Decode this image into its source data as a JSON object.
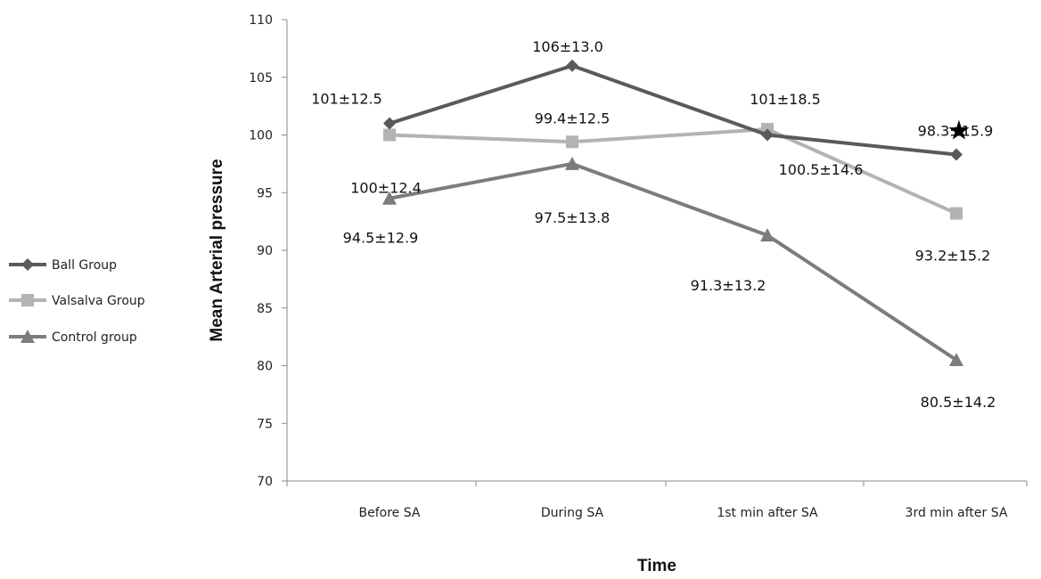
{
  "chart_data": {
    "type": "line",
    "title": "",
    "xlabel": "Time",
    "ylabel": "Mean Arterial  pressure",
    "ylim": [
      70,
      110
    ],
    "yticks": [
      70,
      75,
      80,
      85,
      90,
      95,
      100,
      105,
      110
    ],
    "categories": [
      "Before SA",
      "During SA",
      "1st min after SA",
      "3rd min after SA"
    ],
    "grid": false,
    "legend_position": "left",
    "series": [
      {
        "name": "Ball Group",
        "marker": "diamond",
        "color": "#5a5a5a",
        "values": [
          101,
          106,
          100,
          98.3
        ],
        "labels": [
          "101±12.5",
          "106±13.0",
          "",
          "98.3±15.9"
        ]
      },
      {
        "name": "Valsalva Group",
        "marker": "square",
        "color": "#b3b3b3",
        "values": [
          100,
          99.4,
          100.5,
          93.2
        ],
        "labels": [
          "100±12.4",
          "99.4±12.5",
          "100.5±14.6",
          "93.2±15.2"
        ]
      },
      {
        "name": "Control group",
        "marker": "triangle",
        "color": "#7c7c7c",
        "values": [
          94.5,
          97.5,
          91.3,
          80.5
        ],
        "labels": [
          "94.5±12.9",
          "97.5±13.8",
          "91.3±13.2",
          "80.5±14.2"
        ]
      }
    ],
    "extra_labels": [
      "101±18.5"
    ],
    "annotations": [
      {
        "symbol": "★",
        "category": "3rd min after SA",
        "series": "Ball Group"
      }
    ]
  }
}
